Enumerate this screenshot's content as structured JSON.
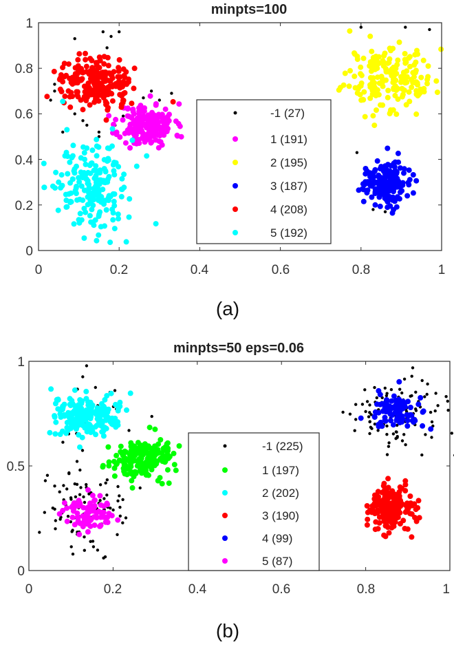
{
  "chart_data": [
    {
      "type": "scatter",
      "title": "minpts=100",
      "caption": "(a)",
      "xlim": [
        0,
        1
      ],
      "ylim": [
        0,
        1
      ],
      "xticks": [
        "0",
        "0.2",
        "0.4",
        "0.6",
        "0.8",
        "1"
      ],
      "yticks": [
        "0",
        "0.2",
        "0.4",
        "0.6",
        "0.8",
        "1"
      ],
      "legend_position": "center",
      "series": [
        {
          "label": "-1 (27)",
          "color": "#000000",
          "count": 27,
          "kind": "noise"
        },
        {
          "label": "1 (191)",
          "color": "#ff00ff",
          "count": 191,
          "center": [
            0.27,
            0.55
          ],
          "spread": [
            0.034,
            0.047
          ]
        },
        {
          "label": "2 (195)",
          "color": "#ffff00",
          "count": 195,
          "center": [
            0.87,
            0.76
          ],
          "spread": [
            0.055,
            0.07
          ]
        },
        {
          "label": "3 (187)",
          "color": "#0000ff",
          "count": 187,
          "center": [
            0.86,
            0.3
          ],
          "spread": [
            0.025,
            0.048
          ]
        },
        {
          "label": "4 (208)",
          "color": "#ff0000",
          "count": 208,
          "center": [
            0.14,
            0.74
          ],
          "spread": [
            0.042,
            0.055
          ]
        },
        {
          "label": "5 (192)",
          "color": "#00ffff",
          "count": 192,
          "center": [
            0.14,
            0.28
          ],
          "spread": [
            0.05,
            0.1
          ]
        }
      ],
      "noise_points": [
        [
          0.09,
          0.93
        ],
        [
          0.16,
          0.96
        ],
        [
          0.18,
          0.94
        ],
        [
          0.04,
          0.7
        ],
        [
          0.03,
          0.66
        ],
        [
          0.11,
          0.57
        ],
        [
          0.06,
          0.52
        ],
        [
          0.15,
          0.5
        ],
        [
          0.19,
          0.55
        ],
        [
          0.21,
          0.59
        ],
        [
          0.28,
          0.7
        ],
        [
          0.33,
          0.69
        ],
        [
          0.3,
          0.66
        ],
        [
          0.2,
          0.96
        ],
        [
          0.8,
          0.98
        ],
        [
          0.91,
          0.98
        ],
        [
          0.97,
          0.97
        ],
        [
          0.79,
          0.43
        ],
        [
          0.83,
          0.18
        ],
        [
          0.86,
          0.17
        ],
        [
          0.15,
          0.52
        ],
        [
          0.23,
          0.62
        ],
        [
          0.26,
          0.67
        ],
        [
          0.12,
          0.55
        ],
        [
          0.09,
          0.6
        ],
        [
          0.17,
          0.89
        ],
        [
          0.04,
          0.73
        ]
      ]
    },
    {
      "type": "scatter",
      "title": "minpts=50 eps=0.06",
      "caption": "(b)",
      "xlim": [
        0,
        1
      ],
      "ylim": [
        0,
        1
      ],
      "xticks": [
        "0",
        "0.2",
        "0.4",
        "0.6",
        "0.8",
        "1"
      ],
      "yticks": [
        "0",
        "0.5",
        "1"
      ],
      "legend_position": "center",
      "series": [
        {
          "label": "-1 (225)",
          "color": "#000000",
          "count": 225,
          "kind": "noise"
        },
        {
          "label": "1 (197)",
          "color": "#00ff00",
          "count": 197,
          "center": [
            0.27,
            0.53
          ],
          "spread": [
            0.035,
            0.045
          ]
        },
        {
          "label": "2 (202)",
          "color": "#00ffff",
          "count": 202,
          "center": [
            0.14,
            0.74
          ],
          "spread": [
            0.042,
            0.05
          ]
        },
        {
          "label": "3 (190)",
          "color": "#ff0000",
          "count": 190,
          "center": [
            0.86,
            0.3
          ],
          "spread": [
            0.025,
            0.05
          ]
        },
        {
          "label": "4 (99)",
          "color": "#0000ff",
          "count": 99,
          "center": [
            0.87,
            0.76
          ],
          "spread": [
            0.03,
            0.035
          ]
        },
        {
          "label": "5 (87)",
          "color": "#ff00ff",
          "count": 87,
          "center": [
            0.14,
            0.27
          ],
          "spread": [
            0.03,
            0.04
          ]
        }
      ],
      "noise_regions": [
        {
          "center": [
            0.87,
            0.76
          ],
          "spread": [
            0.06,
            0.08
          ],
          "count": 110
        },
        {
          "center": [
            0.12,
            0.3
          ],
          "spread": [
            0.055,
            0.11
          ],
          "count": 95
        },
        {
          "center": [
            0.15,
            0.8
          ],
          "spread": [
            0.05,
            0.1
          ],
          "count": 20
        }
      ]
    }
  ]
}
